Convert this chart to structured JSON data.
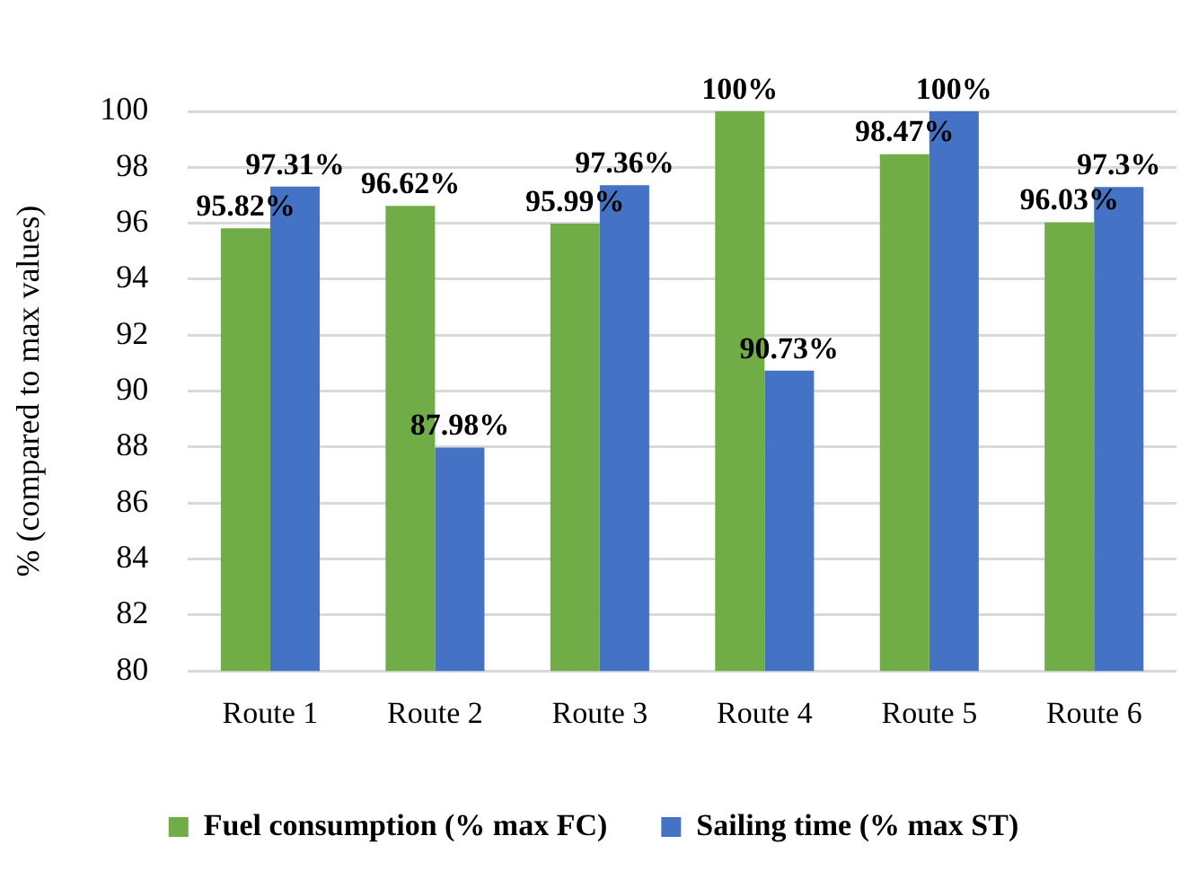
{
  "chart_data": {
    "type": "bar",
    "ylabel": "% (compared to max values)",
    "categories": [
      "Route 1",
      "Route 2",
      "Route 3",
      "Route 4",
      "Route 5",
      "Route 6"
    ],
    "ylim": [
      80,
      100
    ],
    "yticks": [
      80,
      82,
      84,
      86,
      88,
      90,
      92,
      94,
      96,
      98,
      100
    ],
    "grid": "y",
    "legend": "bottom",
    "series": [
      {
        "name": "Fuel consumption (% max FC)",
        "color": "#70ad47",
        "values": [
          95.82,
          96.62,
          95.99,
          100,
          98.47,
          96.03
        ],
        "value_labels": [
          "95.82%",
          "96.62%",
          "95.99%",
          "100%",
          "98.47%",
          "96.03%"
        ]
      },
      {
        "name": "Sailing time (% max ST)",
        "color": "#4472c4",
        "values": [
          97.31,
          87.98,
          97.36,
          90.73,
          100,
          97.3
        ],
        "value_labels": [
          "97.31%",
          "87.98%",
          "97.36%",
          "90.73%",
          "100%",
          "97.3%"
        ]
      }
    ]
  }
}
